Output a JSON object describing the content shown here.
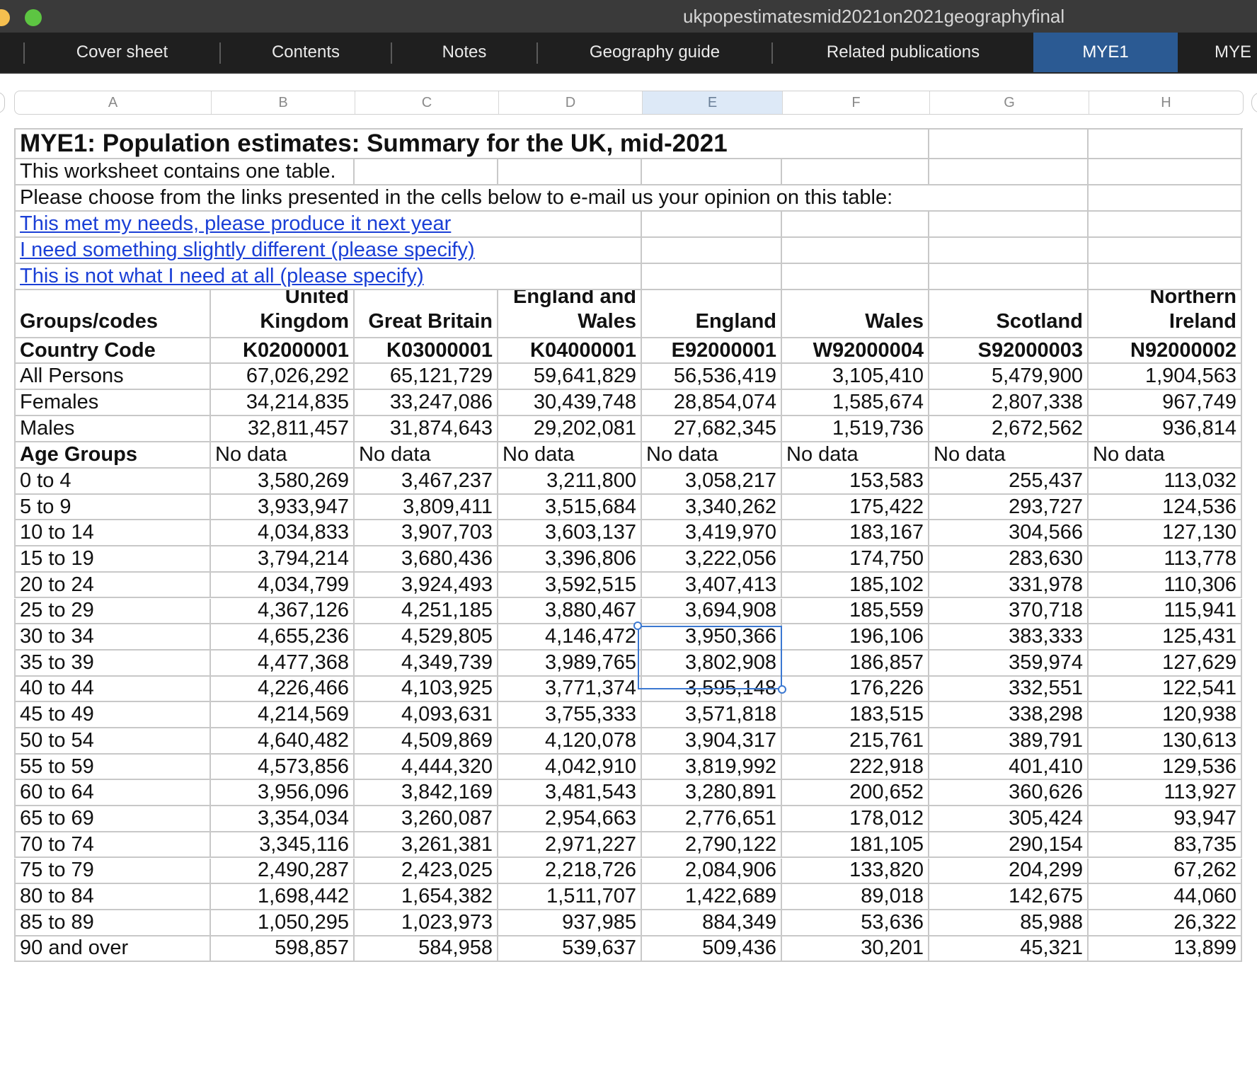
{
  "window": {
    "title": "ukpopestimatesmid2021on2021geographyfinal"
  },
  "tabs": [
    {
      "label": "Cover sheet"
    },
    {
      "label": "Contents"
    },
    {
      "label": "Notes"
    },
    {
      "label": "Geography guide"
    },
    {
      "label": "Related publications"
    },
    {
      "label": "MYE1",
      "active": true
    },
    {
      "label": "MYE"
    }
  ],
  "columns": [
    "A",
    "B",
    "C",
    "D",
    "E",
    "F",
    "G",
    "H"
  ],
  "selected_column": "E",
  "sheet": {
    "title": "MYE1: Population estimates: Summary for the UK, mid-2021",
    "note": "This worksheet contains one table.",
    "feedback_prompt": "Please choose from the links presented in the cells below to e-mail us your opinion on this table:",
    "links": [
      "This met my needs, please produce it next year",
      "I need something slightly different (please specify)",
      "This is not what I need at all (please specify)"
    ],
    "header": {
      "first": "Groups/codes",
      "geos": [
        [
          "United",
          "Kingdom"
        ],
        [
          "",
          "Great Britain"
        ],
        [
          "England and",
          "Wales"
        ],
        [
          "",
          "England"
        ],
        [
          "",
          "Wales"
        ],
        [
          "",
          "Scotland"
        ],
        [
          "Northern",
          "Ireland"
        ]
      ]
    },
    "country_code": {
      "label": "Country Code",
      "codes": [
        "K02000001",
        "K03000001",
        "K04000001",
        "E92000001",
        "W92000004",
        "S92000003",
        "N92000002"
      ]
    },
    "totals": [
      {
        "label": "All Persons",
        "values": [
          "67,026,292",
          "65,121,729",
          "59,641,829",
          "56,536,419",
          "3,105,410",
          "5,479,900",
          "1,904,563"
        ]
      },
      {
        "label": "Females",
        "values": [
          "34,214,835",
          "33,247,086",
          "30,439,748",
          "28,854,074",
          "1,585,674",
          "2,807,338",
          "967,749"
        ]
      },
      {
        "label": "Males",
        "values": [
          "32,811,457",
          "31,874,643",
          "29,202,081",
          "27,682,345",
          "1,519,736",
          "2,672,562",
          "936,814"
        ]
      }
    ],
    "age_groups_label": "Age Groups",
    "no_data": "No data",
    "age_rows": [
      {
        "label": "0 to 4",
        "values": [
          "3,580,269",
          "3,467,237",
          "3,211,800",
          "3,058,217",
          "153,583",
          "255,437",
          "113,032"
        ]
      },
      {
        "label": "5 to 9",
        "values": [
          "3,933,947",
          "3,809,411",
          "3,515,684",
          "3,340,262",
          "175,422",
          "293,727",
          "124,536"
        ]
      },
      {
        "label": "10 to 14",
        "values": [
          "4,034,833",
          "3,907,703",
          "3,603,137",
          "3,419,970",
          "183,167",
          "304,566",
          "127,130"
        ]
      },
      {
        "label": "15 to 19",
        "values": [
          "3,794,214",
          "3,680,436",
          "3,396,806",
          "3,222,056",
          "174,750",
          "283,630",
          "113,778"
        ]
      },
      {
        "label": "20 to 24",
        "values": [
          "4,034,799",
          "3,924,493",
          "3,592,515",
          "3,407,413",
          "185,102",
          "331,978",
          "110,306"
        ]
      },
      {
        "label": "25 to 29",
        "values": [
          "4,367,126",
          "4,251,185",
          "3,880,467",
          "3,694,908",
          "185,559",
          "370,718",
          "115,941"
        ]
      },
      {
        "label": "30 to 34",
        "values": [
          "4,655,236",
          "4,529,805",
          "4,146,472",
          "3,950,366",
          "196,106",
          "383,333",
          "125,431"
        ]
      },
      {
        "label": "35 to 39",
        "values": [
          "4,477,368",
          "4,349,739",
          "3,989,765",
          "3,802,908",
          "186,857",
          "359,974",
          "127,629"
        ]
      },
      {
        "label": "40 to 44",
        "values": [
          "4,226,466",
          "4,103,925",
          "3,771,374",
          "3,595,148",
          "176,226",
          "332,551",
          "122,541"
        ]
      },
      {
        "label": "45 to 49",
        "values": [
          "4,214,569",
          "4,093,631",
          "3,755,333",
          "3,571,818",
          "183,515",
          "338,298",
          "120,938"
        ]
      },
      {
        "label": "50 to 54",
        "values": [
          "4,640,482",
          "4,509,869",
          "4,120,078",
          "3,904,317",
          "215,761",
          "389,791",
          "130,613"
        ]
      },
      {
        "label": "55 to 59",
        "values": [
          "4,573,856",
          "4,444,320",
          "4,042,910",
          "3,819,992",
          "222,918",
          "401,410",
          "129,536"
        ]
      },
      {
        "label": "60 to 64",
        "values": [
          "3,956,096",
          "3,842,169",
          "3,481,543",
          "3,280,891",
          "200,652",
          "360,626",
          "113,927"
        ]
      },
      {
        "label": "65 to 69",
        "values": [
          "3,354,034",
          "3,260,087",
          "2,954,663",
          "2,776,651",
          "178,012",
          "305,424",
          "93,947"
        ]
      },
      {
        "label": "70 to 74",
        "values": [
          "3,345,116",
          "3,261,381",
          "2,971,227",
          "2,790,122",
          "181,105",
          "290,154",
          "83,735"
        ]
      },
      {
        "label": "75 to 79",
        "values": [
          "2,490,287",
          "2,423,025",
          "2,218,726",
          "2,084,906",
          "133,820",
          "204,299",
          "67,262"
        ]
      },
      {
        "label": "80 to 84",
        "values": [
          "1,698,442",
          "1,654,382",
          "1,511,707",
          "1,422,689",
          "89,018",
          "142,675",
          "44,060"
        ]
      },
      {
        "label": "85 to 89",
        "values": [
          "1,050,295",
          "1,023,973",
          "937,985",
          "884,349",
          "53,636",
          "85,988",
          "26,322"
        ]
      },
      {
        "label": "90 and over",
        "values": [
          "598,857",
          "584,958",
          "539,637",
          "509,436",
          "30,201",
          "45,321",
          "13,899"
        ]
      }
    ]
  }
}
